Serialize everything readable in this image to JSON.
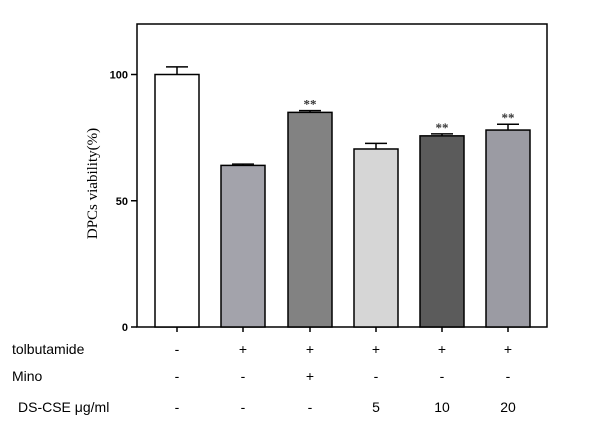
{
  "chart_data": {
    "type": "bar",
    "ylabel": "DPCs viability(%)",
    "ylim": [
      0,
      120
    ],
    "yticks": [
      0,
      50,
      100
    ],
    "bars": [
      {
        "value": 100,
        "error": 3,
        "color": "#ffffff",
        "sig": ""
      },
      {
        "value": 64,
        "error": 0.5,
        "color": "#a3a3ab",
        "sig": ""
      },
      {
        "value": 85,
        "error": 0.7,
        "color": "#828282",
        "sig": "**"
      },
      {
        "value": 70.5,
        "error": 2.2,
        "color": "#d6d6d6",
        "sig": ""
      },
      {
        "value": 75.7,
        "error": 0.8,
        "color": "#5b5b5b",
        "sig": "**"
      },
      {
        "value": 78,
        "error": 2.3,
        "color": "#9b9ba3",
        "sig": "**"
      }
    ],
    "treatment_rows": [
      {
        "label": "tolbutamide",
        "values": [
          "-",
          "+",
          "+",
          "+",
          "+",
          "+"
        ]
      },
      {
        "label": "Mino",
        "values": [
          "-",
          "-",
          "+",
          "-",
          "-",
          "-"
        ]
      },
      {
        "label": "DS-CSE  μg/ml",
        "values": [
          "-",
          "-",
          "-",
          "5",
          "10",
          "20"
        ]
      }
    ],
    "grid": false,
    "legend": "none"
  }
}
